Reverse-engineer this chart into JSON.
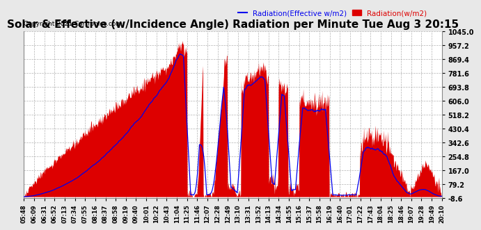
{
  "title": "Solar & Effective (w/Incidence Angle) Radiation per Minute Tue Aug 3 20:15",
  "copyright": "Copyright 2021 Cartronics.com",
  "legend_blue": "Radiation(Effective w/m2)",
  "legend_red": "Radiation(w/m2)",
  "ylabel_right_ticks": [
    -8.6,
    79.2,
    167.0,
    254.8,
    342.6,
    430.4,
    518.2,
    606.0,
    693.8,
    781.6,
    869.4,
    957.2,
    1045.0
  ],
  "ylim": [
    -8.6,
    1045.0
  ],
  "bg_color": "#e8e8e8",
  "plot_bg_color": "#ffffff",
  "title_fontsize": 11,
  "red_color": "#dd0000",
  "blue_color": "#0000ee",
  "xtick_labels": [
    "05:48",
    "06:09",
    "06:31",
    "06:52",
    "07:13",
    "07:34",
    "07:55",
    "08:16",
    "08:37",
    "08:58",
    "09:19",
    "09:40",
    "10:01",
    "10:22",
    "10:43",
    "11:04",
    "11:25",
    "11:46",
    "12:07",
    "12:28",
    "12:49",
    "13:10",
    "13:31",
    "13:52",
    "14:13",
    "14:34",
    "14:55",
    "15:16",
    "15:37",
    "15:58",
    "16:19",
    "16:40",
    "17:01",
    "17:22",
    "17:43",
    "18:04",
    "18:25",
    "18:46",
    "19:07",
    "19:28",
    "19:49",
    "20:10"
  ]
}
